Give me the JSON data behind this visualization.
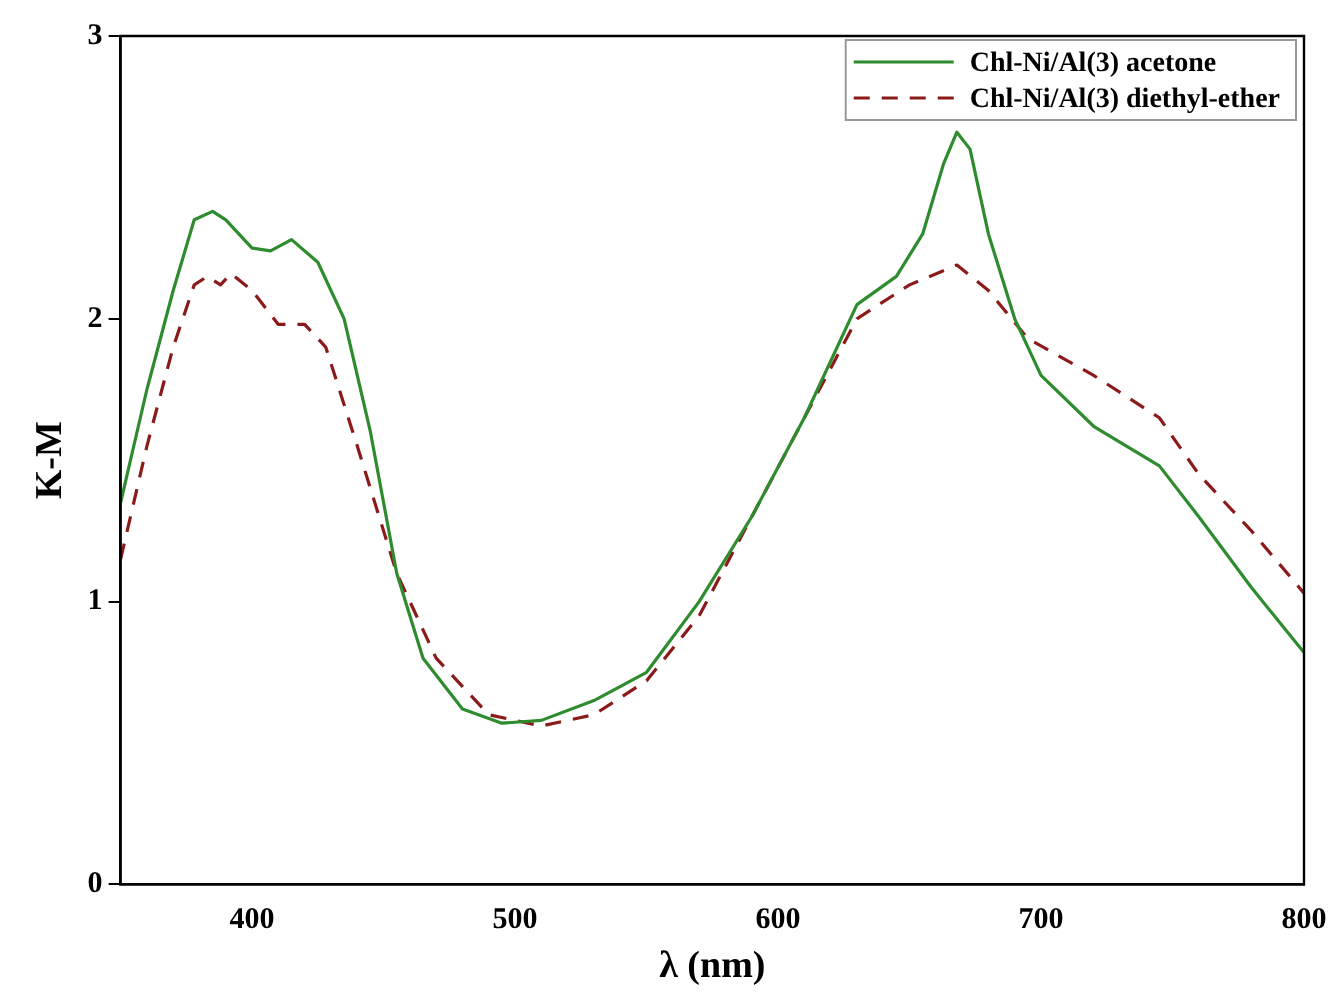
{
  "chart_data": {
    "type": "line",
    "xlabel": "λ (nm)",
    "ylabel": "K-M",
    "xlim": [
      350,
      800
    ],
    "xticks": [
      400,
      500,
      600,
      700,
      800
    ],
    "ylim": [
      0,
      3
    ],
    "yticks": [
      0,
      1,
      2,
      3
    ],
    "grid": false,
    "legend": "top right",
    "marker": "none",
    "series": [
      {
        "name": "Chl-Ni/Al(3) acetone",
        "color": "#2e8b2e",
        "line_style": "solid",
        "x": [
          350,
          360,
          370,
          378,
          385,
          390,
          400,
          407,
          415,
          425,
          435,
          445,
          455,
          465,
          480,
          495,
          510,
          530,
          550,
          570,
          590,
          610,
          630,
          645,
          655,
          663,
          668,
          673,
          680,
          690,
          700,
          720,
          745,
          760,
          780,
          800
        ],
        "values": [
          1.35,
          1.75,
          2.1,
          2.35,
          2.38,
          2.35,
          2.25,
          2.24,
          2.28,
          2.2,
          2.0,
          1.6,
          1.1,
          0.8,
          0.62,
          0.57,
          0.58,
          0.65,
          0.75,
          1.0,
          1.3,
          1.65,
          2.05,
          2.15,
          2.3,
          2.55,
          2.66,
          2.6,
          2.3,
          2.0,
          1.8,
          1.62,
          1.48,
          1.3,
          1.05,
          0.82
        ]
      },
      {
        "name": "Chl-Ni/Al(3) diethyl-ether",
        "color": "#8b1a1a",
        "line_style": "dashed",
        "x": [
          350,
          360,
          370,
          378,
          383,
          388,
          392,
          400,
          410,
          420,
          428,
          440,
          455,
          470,
          490,
          510,
          530,
          550,
          570,
          590,
          610,
          630,
          650,
          668,
          680,
          695,
          720,
          745,
          760,
          780,
          800
        ],
        "values": [
          1.15,
          1.55,
          1.9,
          2.12,
          2.15,
          2.12,
          2.16,
          2.1,
          1.98,
          1.98,
          1.9,
          1.55,
          1.1,
          0.8,
          0.6,
          0.56,
          0.6,
          0.72,
          0.95,
          1.3,
          1.65,
          2.0,
          2.12,
          2.19,
          2.1,
          1.93,
          1.8,
          1.65,
          1.45,
          1.25,
          1.03
        ]
      }
    ]
  }
}
